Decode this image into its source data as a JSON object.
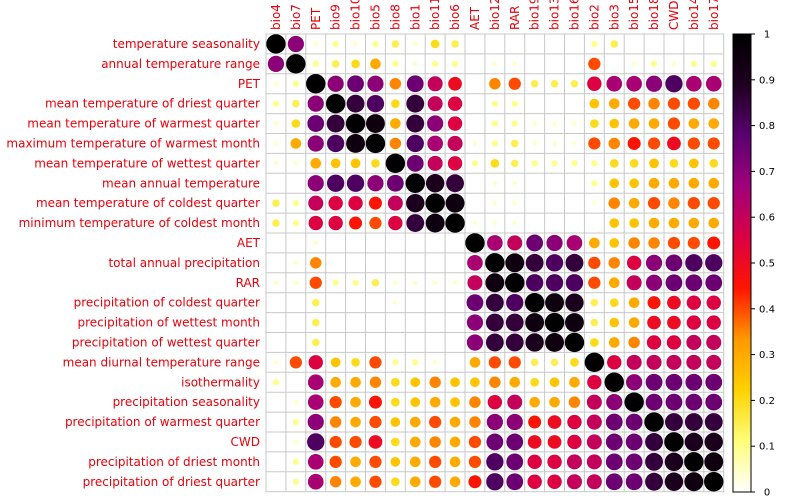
{
  "chart_data": {
    "type": "heatmap",
    "style": "correlation-circles",
    "title": "",
    "row_labels": [
      "temperature seasonality",
      "annual temperature range",
      "PET",
      "mean temperature of driest quarter",
      "mean temperature of warmest quarter",
      "maximum temperature of warmest month",
      "mean temperature of wettest quarter",
      "mean annual temperature",
      "mean temperature of coldest quarter",
      "minimum temperature of coldest month",
      "AET",
      "total annual precipitation",
      "RAR",
      "precipitation of coldest quarter",
      "precipitation of wettest month",
      "precipitation of wettest quarter",
      "mean diurnal temperature range",
      "isothermality",
      "precipitation seasonality",
      "precipitation of warmest quarter",
      "CWD",
      "precipitation of driest month",
      "precipitation of driest quarter"
    ],
    "col_labels": [
      "bio4",
      "bio7",
      "PET",
      "bio9",
      "bio10",
      "bio5",
      "bio8",
      "bio1",
      "bio11",
      "bio6",
      "AET",
      "bio12",
      "RAR",
      "bio19",
      "bio13",
      "bio16",
      "bio2",
      "bio3",
      "bio15",
      "bio18",
      "CWD",
      "bio14",
      "bio17"
    ],
    "values": [
      [
        1.0,
        0.7,
        0.05,
        0.1,
        0.05,
        0.1,
        0.15,
        0.05,
        0.2,
        0.15,
        0.0,
        0.0,
        0.0,
        0.0,
        0.0,
        0.0,
        0.1,
        0.15,
        0.0,
        0.0,
        0.0,
        0.0,
        0.0
      ],
      [
        0.7,
        1.0,
        0.1,
        0.15,
        0.2,
        0.3,
        0.1,
        0.05,
        0.1,
        0.1,
        0.0,
        0.05,
        0.05,
        0.0,
        0.0,
        0.0,
        0.4,
        0.0,
        0.05,
        0.1,
        0.05,
        0.1,
        0.1
      ],
      [
        0.05,
        0.1,
        1.0,
        0.7,
        0.75,
        0.7,
        0.35,
        0.75,
        0.6,
        0.5,
        0.0,
        0.35,
        0.4,
        0.15,
        0.15,
        0.15,
        0.55,
        0.65,
        0.65,
        0.7,
        0.8,
        0.65,
        0.65
      ],
      [
        0.1,
        0.15,
        0.7,
        1.0,
        0.85,
        0.8,
        0.2,
        0.85,
        0.6,
        0.55,
        0.0,
        0.1,
        0.1,
        0.0,
        0.0,
        0.0,
        0.25,
        0.3,
        0.4,
        0.35,
        0.4,
        0.4,
        0.35
      ],
      [
        0.05,
        0.2,
        0.75,
        0.85,
        1.0,
        0.95,
        0.3,
        0.85,
        0.7,
        0.55,
        0.0,
        0.1,
        0.1,
        0.05,
        0.05,
        0.05,
        0.2,
        0.25,
        0.3,
        0.3,
        0.4,
        0.3,
        0.3
      ],
      [
        0.05,
        0.3,
        0.7,
        0.8,
        0.95,
        1.0,
        0.35,
        0.8,
        0.65,
        0.6,
        0.05,
        0.1,
        0.15,
        0.05,
        0.05,
        0.05,
        0.4,
        0.35,
        0.45,
        0.4,
        0.5,
        0.4,
        0.4
      ],
      [
        0.05,
        0.05,
        0.3,
        0.25,
        0.25,
        0.2,
        1.0,
        0.75,
        0.6,
        0.55,
        0.1,
        0.2,
        0.15,
        0.1,
        0.1,
        0.1,
        0.1,
        0.2,
        0.2,
        0.25,
        0.2,
        0.25,
        0.2
      ],
      [
        0.0,
        0.0,
        0.7,
        0.8,
        0.8,
        0.7,
        0.75,
        1.0,
        0.9,
        0.85,
        0.0,
        0.05,
        0.05,
        0.0,
        0.0,
        0.0,
        0.1,
        0.25,
        0.25,
        0.3,
        0.3,
        0.3,
        0.3
      ],
      [
        0.15,
        0.1,
        0.6,
        0.55,
        0.55,
        0.45,
        0.6,
        0.9,
        1.0,
        0.95,
        0.0,
        0.05,
        0.05,
        0.0,
        0.0,
        0.0,
        0.05,
        0.35,
        0.3,
        0.4,
        0.35,
        0.4,
        0.4
      ],
      [
        0.15,
        0.1,
        0.55,
        0.55,
        0.45,
        0.4,
        0.55,
        0.85,
        0.95,
        1.0,
        0.05,
        0.05,
        0.05,
        0.0,
        0.0,
        0.0,
        0.0,
        0.25,
        0.25,
        0.3,
        0.3,
        0.3,
        0.3
      ],
      [
        0.0,
        0.0,
        0.05,
        0.0,
        0.0,
        0.0,
        0.0,
        0.0,
        0.0,
        0.0,
        1.0,
        0.65,
        0.6,
        0.75,
        0.7,
        0.65,
        0.3,
        0.25,
        0.35,
        0.35,
        0.4,
        0.4,
        0.45
      ],
      [
        0.0,
        0.05,
        0.35,
        0.0,
        0.0,
        0.0,
        0.0,
        0.0,
        0.0,
        0.0,
        0.65,
        1.0,
        0.95,
        0.85,
        0.8,
        0.85,
        0.4,
        0.35,
        0.55,
        0.7,
        0.75,
        0.8,
        0.8
      ],
      [
        0.05,
        0.05,
        0.4,
        0.1,
        0.1,
        0.15,
        0.05,
        0.05,
        0.05,
        0.05,
        0.6,
        0.95,
        1.0,
        0.8,
        0.8,
        0.8,
        0.4,
        0.3,
        0.6,
        0.7,
        0.75,
        0.75,
        0.75
      ],
      [
        0.0,
        0.0,
        0.15,
        0.0,
        0.0,
        0.0,
        0.05,
        0.0,
        0.0,
        0.0,
        0.75,
        0.85,
        0.8,
        1.0,
        0.95,
        0.9,
        0.15,
        0.2,
        0.3,
        0.45,
        0.5,
        0.55,
        0.55
      ],
      [
        0.0,
        0.0,
        0.15,
        0.0,
        0.0,
        0.0,
        0.0,
        0.0,
        0.0,
        0.0,
        0.7,
        0.85,
        0.85,
        0.95,
        1.0,
        0.95,
        0.15,
        0.25,
        0.3,
        0.5,
        0.5,
        0.55,
        0.55
      ],
      [
        0.0,
        0.0,
        0.15,
        0.0,
        0.0,
        0.0,
        0.0,
        0.0,
        0.0,
        0.0,
        0.7,
        0.85,
        0.85,
        0.9,
        0.95,
        1.0,
        0.2,
        0.3,
        0.35,
        0.55,
        0.55,
        0.6,
        0.6
      ],
      [
        0.05,
        0.4,
        0.55,
        0.25,
        0.2,
        0.4,
        0.1,
        0.1,
        0.05,
        0.0,
        0.3,
        0.4,
        0.4,
        0.15,
        0.15,
        0.2,
        1.0,
        0.55,
        0.6,
        0.6,
        0.6,
        0.6,
        0.6
      ],
      [
        0.1,
        0.0,
        0.65,
        0.3,
        0.3,
        0.35,
        0.2,
        0.25,
        0.35,
        0.25,
        0.25,
        0.35,
        0.3,
        0.2,
        0.25,
        0.3,
        0.55,
        1.0,
        0.7,
        0.75,
        0.75,
        0.75,
        0.75
      ],
      [
        0.0,
        0.05,
        0.65,
        0.4,
        0.3,
        0.45,
        0.2,
        0.25,
        0.3,
        0.25,
        0.35,
        0.55,
        0.6,
        0.3,
        0.3,
        0.35,
        0.6,
        0.7,
        1.0,
        0.75,
        0.75,
        0.75,
        0.75
      ],
      [
        0.0,
        0.1,
        0.7,
        0.35,
        0.3,
        0.4,
        0.25,
        0.3,
        0.4,
        0.3,
        0.35,
        0.7,
        0.7,
        0.45,
        0.5,
        0.55,
        0.6,
        0.75,
        0.75,
        1.0,
        0.85,
        0.85,
        0.85
      ],
      [
        0.0,
        0.05,
        0.8,
        0.4,
        0.4,
        0.5,
        0.2,
        0.3,
        0.35,
        0.3,
        0.4,
        0.75,
        0.75,
        0.5,
        0.5,
        0.55,
        0.6,
        0.75,
        0.75,
        0.85,
        1.0,
        0.9,
        0.9
      ],
      [
        0.0,
        0.1,
        0.65,
        0.4,
        0.3,
        0.4,
        0.25,
        0.3,
        0.4,
        0.3,
        0.4,
        0.8,
        0.75,
        0.55,
        0.55,
        0.6,
        0.6,
        0.75,
        0.75,
        0.85,
        0.9,
        1.0,
        0.95
      ],
      [
        0.0,
        0.1,
        0.65,
        0.35,
        0.3,
        0.4,
        0.2,
        0.3,
        0.4,
        0.3,
        0.45,
        0.8,
        0.75,
        0.55,
        0.55,
        0.6,
        0.6,
        0.75,
        0.75,
        0.85,
        0.9,
        0.95,
        1.0
      ]
    ],
    "colorbar": {
      "range": [
        0,
        1
      ],
      "ticks": [
        0,
        0.1,
        0.2,
        0.3,
        0.4,
        0.5,
        0.6,
        0.7,
        0.8,
        0.9,
        1
      ],
      "tick_labels": [
        "0",
        "0.1",
        "0.2",
        "0.3",
        "0.4",
        "0.5",
        "0.6",
        "0.7",
        "0.8",
        "0.9",
        "1"
      ],
      "colors": [
        "#ffffff",
        "#fffe7a",
        "#ffd100",
        "#ff9900",
        "#ff1500",
        "#db0044",
        "#a0007a",
        "#5a0070",
        "#1e0020",
        "#000000"
      ]
    },
    "grid_color": "#c8c8c8",
    "label_color": "#e8000b",
    "legend_placement": "right"
  }
}
